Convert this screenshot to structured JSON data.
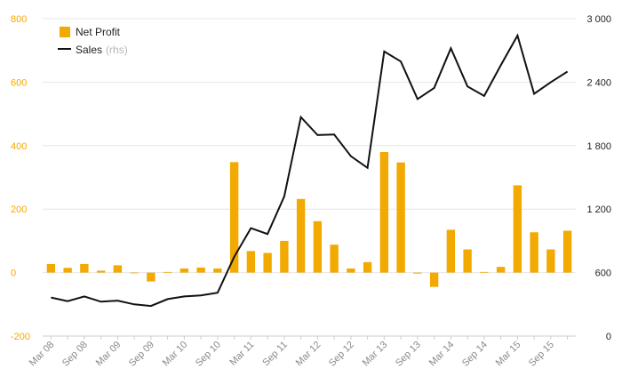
{
  "chart_data": {
    "type": "bar+line",
    "x": [
      "Mar 08",
      "Jun 08",
      "Sep 08",
      "Dec 08",
      "Mar 09",
      "Jun 09",
      "Sep 09",
      "Dec 09",
      "Mar 10",
      "Jun 10",
      "Sep 10",
      "Dec 10",
      "Mar 11",
      "Jun 11",
      "Sep 11",
      "Dec 11",
      "Mar 12",
      "Jun 12",
      "Sep 12",
      "Dec 12",
      "Mar 13",
      "Jun 13",
      "Sep 13",
      "Dec 13",
      "Mar 14",
      "Jun 14",
      "Sep 14",
      "Dec 14",
      "Mar 15",
      "Jun 15",
      "Sep 15",
      "Dec 15"
    ],
    "x_tick_labels": [
      "Mar 08",
      "Sep 08",
      "Mar 09",
      "Sep 09",
      "Mar 10",
      "Sep 10",
      "Mar 11",
      "Sep 11",
      "Mar 12",
      "Sep 12",
      "Mar 13",
      "Sep 13",
      "Mar 14",
      "Sep 14",
      "Mar 15",
      "Sep 15"
    ],
    "series": [
      {
        "name": "Net Profit",
        "type": "bar",
        "axis": "left",
        "color": "#f2a900",
        "values": [
          27,
          15,
          27,
          6,
          23,
          0,
          -28,
          2,
          13,
          16,
          13,
          348,
          68,
          62,
          100,
          232,
          162,
          88,
          13,
          33,
          380,
          347,
          -3,
          -45,
          135,
          73,
          2,
          18,
          275,
          127,
          73,
          132
        ]
      },
      {
        "name": "Sales",
        "name_suffix": "(rhs)",
        "type": "line",
        "axis": "right",
        "color": "#111111",
        "values": [
          365,
          330,
          375,
          325,
          335,
          300,
          285,
          350,
          375,
          385,
          410,
          750,
          1020,
          965,
          1320,
          2070,
          1900,
          1905,
          1700,
          1590,
          2690,
          2595,
          2240,
          2345,
          2720,
          2360,
          2270,
          2560,
          2840,
          2290,
          2400,
          2500
        ]
      }
    ],
    "y_left": {
      "ylim": [
        -200,
        800
      ],
      "ticks": [
        "-200",
        "0",
        "200",
        "400",
        "600",
        "800"
      ]
    },
    "y_right": {
      "ylim": [
        0,
        3000
      ],
      "ticks": [
        "0",
        "600",
        "1 200",
        "1 800",
        "2 400",
        "3 000"
      ]
    },
    "grid": true,
    "legend": {
      "position": "top-left",
      "items": [
        "Net Profit",
        "Sales"
      ],
      "sub_label": "(rhs)"
    },
    "title": "",
    "xlabel": "",
    "ylabel": ""
  }
}
